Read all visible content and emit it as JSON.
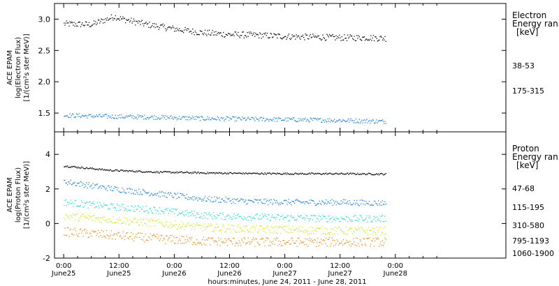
{
  "chart_data": [
    {
      "type": "scatter",
      "ylabel_lines": [
        "ACE EPAM",
        "log(Electron Flux)",
        "[1/(cm²s ster MeV)]"
      ],
      "ylim": [
        1.2,
        3.25
      ],
      "y_ticks": [
        "1.5",
        "2.0",
        "2.5",
        "3.0"
      ],
      "y_tick_values": [
        1.5,
        2.0,
        2.5,
        3.0
      ],
      "legend_title": [
        "Electron",
        "Energy ran",
        "[keV]"
      ],
      "series": [
        {
          "name": "38-53",
          "color": "#000000",
          "points": [
            [
              0,
              2.93
            ],
            [
              6,
              2.92
            ],
            [
              11,
              3.05
            ],
            [
              12,
              3.02
            ],
            [
              18,
              2.92
            ],
            [
              24,
              2.85
            ],
            [
              30,
              2.79
            ],
            [
              36,
              2.76
            ],
            [
              42,
              2.75
            ],
            [
              48,
              2.73
            ],
            [
              54,
              2.72
            ],
            [
              60,
              2.71
            ],
            [
              66,
              2.71
            ],
            [
              70,
              2.7
            ]
          ]
        },
        {
          "name": "175-315",
          "color": "#1e7fd8",
          "points": [
            [
              0,
              1.47
            ],
            [
              10,
              1.45
            ],
            [
              20,
              1.44
            ],
            [
              30,
              1.42
            ],
            [
              40,
              1.41
            ],
            [
              50,
              1.4
            ],
            [
              60,
              1.39
            ],
            [
              70,
              1.37
            ]
          ]
        }
      ]
    },
    {
      "type": "scatter",
      "ylabel_lines": [
        "ACE EPAM",
        "log(Proton Flux)",
        "[1/(cm²s ster MeV)]"
      ],
      "ylim": [
        -2,
        5.3
      ],
      "y_ticks": [
        "-2",
        "0",
        "2",
        "4"
      ],
      "y_tick_values": [
        -2,
        0,
        2,
        4
      ],
      "legend_title": [
        "Proton",
        "Energy ran",
        "[keV]"
      ],
      "series": [
        {
          "name": "47-68",
          "color": "#000000",
          "points": [
            [
              0,
              3.35
            ],
            [
              10,
              3.1
            ],
            [
              20,
              3.0
            ],
            [
              30,
              2.95
            ],
            [
              40,
              2.92
            ],
            [
              50,
              2.9
            ],
            [
              60,
              2.9
            ],
            [
              70,
              2.88
            ]
          ]
        },
        {
          "name": "115-195",
          "color": "#1e7fd8",
          "points": [
            [
              0,
              2.45
            ],
            [
              10,
              2.05
            ],
            [
              20,
              1.75
            ],
            [
              30,
              1.45
            ],
            [
              40,
              1.3
            ],
            [
              50,
              1.25
            ],
            [
              60,
              1.25
            ],
            [
              70,
              1.2
            ]
          ]
        },
        {
          "name": "310-580",
          "color": "#2adbc8",
          "points": [
            [
              0,
              1.25
            ],
            [
              10,
              1.0
            ],
            [
              20,
              0.8
            ],
            [
              30,
              0.5
            ],
            [
              40,
              0.4
            ],
            [
              50,
              0.35
            ],
            [
              60,
              0.3
            ],
            [
              70,
              0.3
            ]
          ]
        },
        {
          "name": "795-1193",
          "color": "#c7e81d",
          "points": [
            [
              0,
              0.45
            ],
            [
              10,
              0.25
            ],
            [
              20,
              0.05
            ],
            [
              30,
              -0.2
            ],
            [
              40,
              -0.3
            ],
            [
              50,
              -0.35
            ],
            [
              60,
              -0.4
            ],
            [
              70,
              -0.4
            ]
          ]
        },
        {
          "name": "1060-1900",
          "color": "#e8891a",
          "points": [
            [
              0,
              -0.45
            ],
            [
              10,
              -0.65
            ],
            [
              20,
              -0.85
            ],
            [
              30,
              -1.0
            ],
            [
              40,
              -1.05
            ],
            [
              50,
              -1.05
            ],
            [
              60,
              -1.05
            ],
            [
              70,
              -1.05
            ]
          ]
        }
      ]
    }
  ],
  "x_axis": {
    "xlim": [
      -2,
      96
    ],
    "ticks": [
      {
        "hour": 0,
        "time": "0:00",
        "date": "June25"
      },
      {
        "hour": 12,
        "time": "12:00",
        "date": "June25"
      },
      {
        "hour": 24,
        "time": "0:00",
        "date": "June26"
      },
      {
        "hour": 36,
        "time": "12:00",
        "date": "June26"
      },
      {
        "hour": 48,
        "time": "0:00",
        "date": "June27"
      },
      {
        "hour": 60,
        "time": "12:00",
        "date": "June27"
      },
      {
        "hour": 72,
        "time": "0:00",
        "date": "June28"
      }
    ],
    "xlabel": "hours:minutes, June 24, 2011 - June 28, 2011"
  }
}
